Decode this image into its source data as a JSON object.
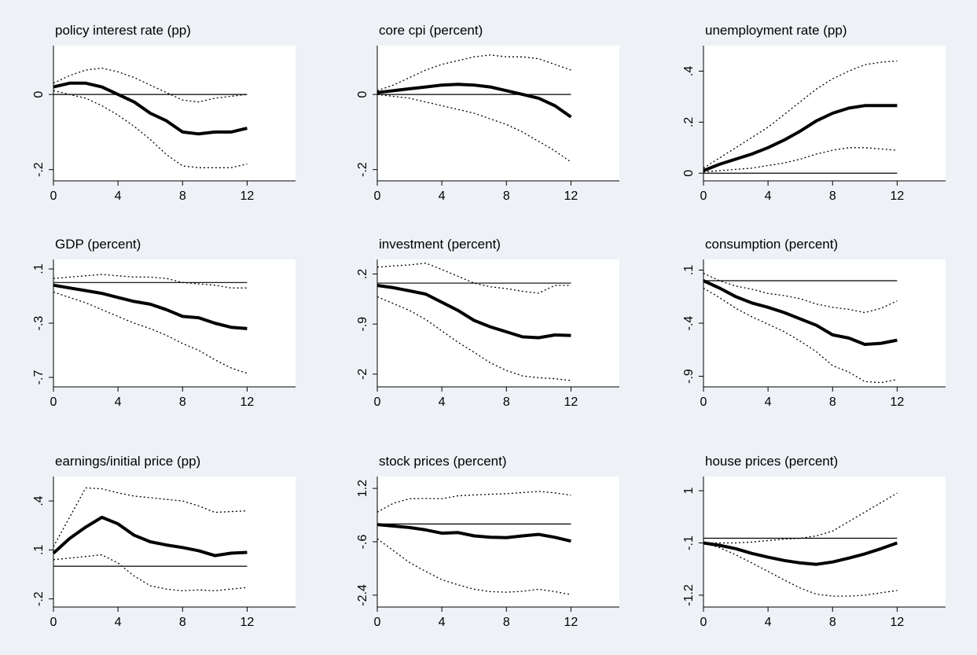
{
  "chart_data": [
    {
      "type": "line",
      "title": "policy interest rate (pp)",
      "xticks": [
        0,
        4,
        8,
        12
      ],
      "yticks": [
        0,
        -0.2
      ],
      "ytick_labels": [
        "0",
        "-.2"
      ],
      "xlim": [
        0,
        15
      ],
      "ylim": [
        -0.23,
        0.13
      ],
      "x": [
        0,
        1,
        2,
        3,
        4,
        5,
        6,
        7,
        8,
        9,
        10,
        11,
        12
      ],
      "series": [
        {
          "role": "estimate",
          "values": [
            0.02,
            0.03,
            0.03,
            0.02,
            0.0,
            -0.02,
            -0.05,
            -0.07,
            -0.1,
            -0.105,
            -0.1,
            -0.1,
            -0.09
          ]
        },
        {
          "role": "upper",
          "values": [
            0.03,
            0.05,
            0.065,
            0.07,
            0.06,
            0.045,
            0.025,
            0.005,
            -0.015,
            -0.02,
            -0.01,
            -0.005,
            0.0
          ]
        },
        {
          "role": "lower",
          "values": [
            0.01,
            0.0,
            -0.01,
            -0.03,
            -0.055,
            -0.085,
            -0.12,
            -0.16,
            -0.19,
            -0.195,
            -0.195,
            -0.195,
            -0.185
          ]
        }
      ],
      "reference_line": 0
    },
    {
      "type": "line",
      "title": "core cpi (percent)",
      "xticks": [
        0,
        4,
        8,
        12
      ],
      "yticks": [
        0,
        -0.2
      ],
      "ytick_labels": [
        "0",
        "-.2"
      ],
      "xlim": [
        0,
        15
      ],
      "ylim": [
        -0.23,
        0.13
      ],
      "x": [
        0,
        1,
        2,
        3,
        4,
        5,
        6,
        7,
        8,
        9,
        10,
        11,
        12
      ],
      "series": [
        {
          "role": "estimate",
          "values": [
            0.005,
            0.01,
            0.015,
            0.02,
            0.025,
            0.027,
            0.025,
            0.02,
            0.01,
            0.0,
            -0.01,
            -0.03,
            -0.06
          ]
        },
        {
          "role": "upper",
          "values": [
            0.01,
            0.025,
            0.045,
            0.065,
            0.08,
            0.09,
            0.1,
            0.105,
            0.1,
            0.1,
            0.095,
            0.08,
            0.065
          ]
        },
        {
          "role": "lower",
          "values": [
            0.0,
            -0.005,
            -0.01,
            -0.02,
            -0.03,
            -0.04,
            -0.05,
            -0.065,
            -0.08,
            -0.1,
            -0.125,
            -0.15,
            -0.18
          ]
        }
      ],
      "reference_line": 0
    },
    {
      "type": "line",
      "title": "unemployment rate (pp)",
      "xticks": [
        0,
        4,
        8,
        12
      ],
      "yticks": [
        0,
        0.2,
        0.4
      ],
      "ytick_labels": [
        "0",
        ".2",
        ".4"
      ],
      "xlim": [
        0,
        15
      ],
      "ylim": [
        -0.03,
        0.5
      ],
      "x": [
        0,
        1,
        2,
        3,
        4,
        5,
        6,
        7,
        8,
        9,
        10,
        11,
        12
      ],
      "series": [
        {
          "role": "estimate",
          "values": [
            0.01,
            0.035,
            0.055,
            0.075,
            0.1,
            0.13,
            0.165,
            0.205,
            0.235,
            0.255,
            0.265,
            0.265,
            0.265
          ]
        },
        {
          "role": "upper",
          "values": [
            0.02,
            0.06,
            0.1,
            0.14,
            0.18,
            0.23,
            0.28,
            0.33,
            0.37,
            0.4,
            0.425,
            0.435,
            0.44
          ]
        },
        {
          "role": "lower",
          "values": [
            0.005,
            0.01,
            0.015,
            0.02,
            0.03,
            0.04,
            0.055,
            0.075,
            0.09,
            0.1,
            0.1,
            0.095,
            0.09
          ]
        }
      ],
      "reference_line": 0
    },
    {
      "type": "line",
      "title": "GDP (percent)",
      "xticks": [
        0,
        4,
        8,
        12
      ],
      "yticks": [
        0.1,
        -0.3,
        -0.7
      ],
      "ytick_labels": [
        ".1",
        "-.3",
        "-.7"
      ],
      "xlim": [
        0,
        15
      ],
      "ylim": [
        -0.77,
        0.17
      ],
      "x": [
        0,
        1,
        2,
        3,
        4,
        5,
        6,
        7,
        8,
        9,
        10,
        11,
        12
      ],
      "series": [
        {
          "role": "estimate",
          "values": [
            -0.02,
            -0.04,
            -0.06,
            -0.08,
            -0.11,
            -0.14,
            -0.16,
            -0.2,
            -0.25,
            -0.26,
            -0.3,
            -0.33,
            -0.34
          ]
        },
        {
          "role": "upper",
          "values": [
            0.03,
            0.04,
            0.05,
            0.06,
            0.05,
            0.04,
            0.04,
            0.03,
            0.0,
            -0.01,
            -0.02,
            -0.04,
            -0.04
          ]
        },
        {
          "role": "lower",
          "values": [
            -0.07,
            -0.11,
            -0.15,
            -0.2,
            -0.25,
            -0.3,
            -0.34,
            -0.39,
            -0.45,
            -0.5,
            -0.57,
            -0.63,
            -0.67
          ]
        }
      ],
      "reference_line": 0
    },
    {
      "type": "line",
      "title": "investment (percent)",
      "xticks": [
        0,
        4,
        8,
        12
      ],
      "yticks": [
        0.2,
        -0.9,
        -2
      ],
      "ytick_labels": [
        ".2",
        "-.9",
        "-2"
      ],
      "xlim": [
        0,
        15
      ],
      "ylim": [
        -2.28,
        0.52
      ],
      "x": [
        0,
        1,
        2,
        3,
        4,
        5,
        6,
        7,
        8,
        9,
        10,
        11,
        12
      ],
      "series": [
        {
          "role": "estimate",
          "values": [
            -0.05,
            -0.1,
            -0.17,
            -0.24,
            -0.42,
            -0.6,
            -0.82,
            -0.96,
            -1.07,
            -1.18,
            -1.2,
            -1.14,
            -1.15
          ]
        },
        {
          "role": "upper",
          "values": [
            0.35,
            0.38,
            0.4,
            0.44,
            0.3,
            0.15,
            0.0,
            -0.08,
            -0.12,
            -0.18,
            -0.22,
            -0.05,
            -0.05
          ]
        },
        {
          "role": "lower",
          "values": [
            -0.3,
            -0.45,
            -0.6,
            -0.8,
            -1.05,
            -1.3,
            -1.52,
            -1.75,
            -1.92,
            -2.04,
            -2.08,
            -2.1,
            -2.14
          ]
        }
      ],
      "reference_line": 0
    },
    {
      "type": "line",
      "title": "consumption (percent)",
      "xticks": [
        0,
        4,
        8,
        12
      ],
      "yticks": [
        0.1,
        -0.4,
        -0.9
      ],
      "ytick_labels": [
        ".1",
        "-.4",
        "-.9"
      ],
      "xlim": [
        0,
        15
      ],
      "ylim": [
        -1.0,
        0.2
      ],
      "x": [
        0,
        1,
        2,
        3,
        4,
        5,
        6,
        7,
        8,
        9,
        10,
        11,
        12
      ],
      "series": [
        {
          "role": "estimate",
          "values": [
            0.0,
            -0.07,
            -0.15,
            -0.21,
            -0.25,
            -0.3,
            -0.36,
            -0.42,
            -0.51,
            -0.54,
            -0.6,
            -0.59,
            -0.56
          ]
        },
        {
          "role": "upper",
          "values": [
            0.07,
            0.0,
            -0.05,
            -0.08,
            -0.12,
            -0.14,
            -0.17,
            -0.22,
            -0.25,
            -0.27,
            -0.3,
            -0.26,
            -0.19
          ]
        },
        {
          "role": "lower",
          "values": [
            -0.07,
            -0.16,
            -0.26,
            -0.34,
            -0.41,
            -0.48,
            -0.57,
            -0.67,
            -0.8,
            -0.86,
            -0.95,
            -0.96,
            -0.93
          ]
        }
      ],
      "reference_line": 0
    },
    {
      "type": "line",
      "title": "earnings/initial price (pp)",
      "xticks": [
        0,
        4,
        8,
        12
      ],
      "yticks": [
        0.4,
        0.1,
        -0.2
      ],
      "ytick_labels": [
        ".4",
        ".1",
        "-.2"
      ],
      "xlim": [
        0,
        15
      ],
      "ylim": [
        -0.25,
        0.55
      ],
      "x": [
        0,
        1,
        2,
        3,
        4,
        5,
        6,
        7,
        8,
        9,
        10,
        11,
        12
      ],
      "series": [
        {
          "role": "estimate",
          "values": [
            0.08,
            0.17,
            0.24,
            0.3,
            0.26,
            0.19,
            0.15,
            0.13,
            0.115,
            0.095,
            0.065,
            0.08,
            0.085
          ]
        },
        {
          "role": "upper",
          "values": [
            0.12,
            0.3,
            0.48,
            0.475,
            0.45,
            0.43,
            0.42,
            0.41,
            0.4,
            0.37,
            0.33,
            0.335,
            0.34
          ]
        },
        {
          "role": "lower",
          "values": [
            0.04,
            0.05,
            0.06,
            0.07,
            0.02,
            -0.06,
            -0.12,
            -0.14,
            -0.15,
            -0.145,
            -0.15,
            -0.14,
            -0.13
          ]
        }
      ],
      "reference_line": 0
    },
    {
      "type": "line",
      "title": "stock prices (percent)",
      "xticks": [
        0,
        4,
        8,
        12
      ],
      "yticks": [
        1.2,
        -0.6,
        -2.4
      ],
      "ytick_labels": [
        "1.2",
        "-.6",
        "-2.4"
      ],
      "xlim": [
        0,
        15
      ],
      "ylim": [
        -2.8,
        1.6
      ],
      "x": [
        0,
        1,
        2,
        3,
        4,
        5,
        6,
        7,
        8,
        9,
        10,
        11,
        12
      ],
      "series": [
        {
          "role": "estimate",
          "values": [
            -0.02,
            -0.07,
            -0.12,
            -0.2,
            -0.31,
            -0.29,
            -0.4,
            -0.45,
            -0.46,
            -0.4,
            -0.35,
            -0.45,
            -0.58
          ]
        },
        {
          "role": "upper",
          "values": [
            0.4,
            0.7,
            0.85,
            0.86,
            0.85,
            0.95,
            0.98,
            1.0,
            1.02,
            1.06,
            1.1,
            1.05,
            0.97
          ]
        },
        {
          "role": "lower",
          "values": [
            -0.5,
            -0.9,
            -1.3,
            -1.6,
            -1.88,
            -2.05,
            -2.2,
            -2.28,
            -2.3,
            -2.27,
            -2.2,
            -2.28,
            -2.38
          ]
        }
      ],
      "reference_line": 0
    },
    {
      "type": "line",
      "title": "house prices (percent)",
      "xticks": [
        0,
        4,
        8,
        12
      ],
      "yticks": [
        1,
        -0.1,
        -1.2
      ],
      "ytick_labels": [
        "1",
        "-.1",
        "-1.2"
      ],
      "xlim": [
        0,
        15
      ],
      "ylim": [
        -1.45,
        1.3
      ],
      "x": [
        0,
        1,
        2,
        3,
        4,
        5,
        6,
        7,
        8,
        9,
        10,
        11,
        12
      ],
      "series": [
        {
          "role": "estimate",
          "values": [
            -0.1,
            -0.15,
            -0.22,
            -0.32,
            -0.4,
            -0.47,
            -0.52,
            -0.55,
            -0.5,
            -0.42,
            -0.33,
            -0.22,
            -0.1
          ]
        },
        {
          "role": "upper",
          "values": [
            -0.1,
            -0.1,
            -0.1,
            -0.08,
            -0.05,
            -0.02,
            0.0,
            0.05,
            0.15,
            0.35,
            0.55,
            0.75,
            0.95
          ]
        },
        {
          "role": "lower",
          "values": [
            -0.1,
            -0.2,
            -0.35,
            -0.52,
            -0.7,
            -0.88,
            -1.05,
            -1.18,
            -1.22,
            -1.22,
            -1.2,
            -1.15,
            -1.1
          ]
        }
      ],
      "reference_line": 0
    }
  ]
}
